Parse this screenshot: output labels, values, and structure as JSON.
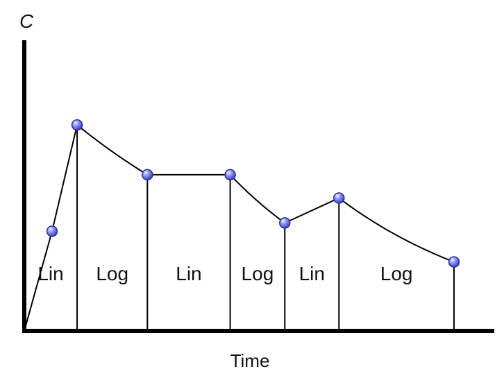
{
  "chart_data": {
    "type": "line",
    "title": "",
    "xlabel": "Time",
    "ylabel": "C",
    "grid": false,
    "legend": "none",
    "axis_color": "#000000",
    "curve_color": "#000000",
    "marker_color": "#5c63d9",
    "points": [
      {
        "x": 0.0,
        "y": 0.0
      },
      {
        "x": 0.62,
        "y": 1.2
      },
      {
        "x": 1.18,
        "y": 2.48
      },
      {
        "x": 2.75,
        "y": 1.88
      },
      {
        "x": 4.6,
        "y": 1.88
      },
      {
        "x": 5.82,
        "y": 1.3
      },
      {
        "x": 7.03,
        "y": 1.6
      },
      {
        "x": 9.6,
        "y": 0.83
      }
    ],
    "segments": [
      {
        "label": "Lin",
        "x_start": 0.0,
        "x_end": 1.18,
        "mode": "lin"
      },
      {
        "label": "Log",
        "x_start": 1.18,
        "x_end": 2.75,
        "mode": "log"
      },
      {
        "label": "Lin",
        "x_start": 2.75,
        "x_end": 4.6,
        "mode": "lin"
      },
      {
        "label": "Log",
        "x_start": 4.6,
        "x_end": 5.82,
        "mode": "log"
      },
      {
        "label": "Lin",
        "x_start": 5.82,
        "x_end": 7.03,
        "mode": "lin"
      },
      {
        "label": "Log",
        "x_start": 7.03,
        "x_end": 9.6,
        "mode": "log"
      }
    ],
    "xlim": [
      0,
      10.5
    ],
    "ylim": [
      0,
      3.5
    ]
  }
}
